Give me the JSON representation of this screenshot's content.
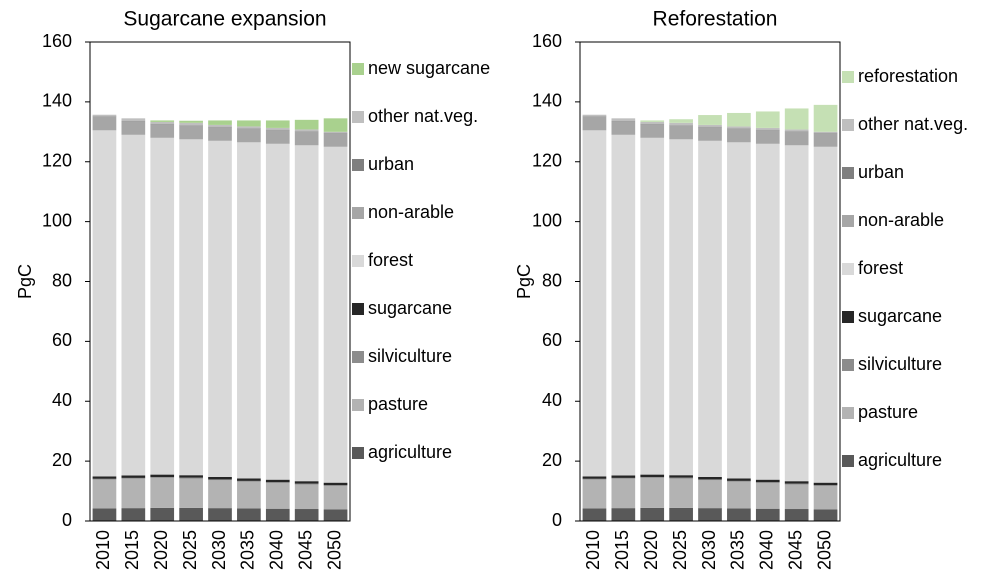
{
  "chart_data": [
    {
      "type": "stacked_bar",
      "title": "Sugarcane expansion",
      "y_label": "PgC",
      "categories": [
        "2010",
        "2015",
        "2020",
        "2025",
        "2030",
        "2035",
        "2040",
        "2045",
        "2050"
      ],
      "ylim": [
        0,
        160
      ],
      "yticks": [
        0,
        20,
        40,
        60,
        80,
        100,
        120,
        140,
        160
      ],
      "series": [
        {
          "name": "agriculture",
          "color": "#595959",
          "values": [
            4.2,
            4.3,
            4.4,
            4.4,
            4.3,
            4.2,
            4.1,
            4.0,
            3.9
          ]
        },
        {
          "name": "pasture",
          "color": "#b3b3b3",
          "values": [
            9.6,
            9.8,
            10.0,
            9.8,
            9.3,
            8.9,
            8.6,
            8.2,
            7.8
          ]
        },
        {
          "name": "silviculture",
          "color": "#8c8c8c",
          "values": [
            0.3,
            0.3,
            0.3,
            0.3,
            0.3,
            0.3,
            0.3,
            0.3,
            0.3
          ]
        },
        {
          "name": "sugarcane",
          "color": "#262626",
          "values": [
            0.8,
            0.8,
            0.8,
            0.8,
            0.8,
            0.8,
            0.8,
            0.8,
            0.8
          ]
        },
        {
          "name": "forest",
          "color": "#d9d9d9",
          "values": [
            115.6,
            113.8,
            112.5,
            112.2,
            112.3,
            112.3,
            112.2,
            112.2,
            112.2
          ]
        },
        {
          "name": "non-arable",
          "color": "#a6a6a6",
          "values": [
            4.5,
            4.5,
            4.5,
            4.5,
            4.5,
            4.5,
            4.5,
            4.5,
            4.5
          ]
        },
        {
          "name": "urban",
          "color": "#7f7f7f",
          "values": [
            0.2,
            0.2,
            0.2,
            0.2,
            0.2,
            0.2,
            0.2,
            0.2,
            0.2
          ]
        },
        {
          "name": "other nat.veg.",
          "color": "#bfbfbf",
          "values": [
            0.5,
            0.8,
            0.6,
            0.8,
            0.6,
            0.6,
            0.6,
            0.6,
            0.3
          ]
        },
        {
          "name": "new sugarcane",
          "color": "#a9d18e",
          "values": [
            0,
            0,
            0.5,
            0.7,
            1.5,
            2.0,
            2.5,
            3.2,
            4.5
          ]
        }
      ]
    },
    {
      "type": "stacked_bar",
      "title": "Reforestation",
      "y_label": "PgC",
      "categories": [
        "2010",
        "2015",
        "2020",
        "2025",
        "2030",
        "2035",
        "2040",
        "2045",
        "2050"
      ],
      "ylim": [
        0,
        160
      ],
      "yticks": [
        0,
        20,
        40,
        60,
        80,
        100,
        120,
        140,
        160
      ],
      "series": [
        {
          "name": "agriculture",
          "color": "#595959",
          "values": [
            4.2,
            4.3,
            4.4,
            4.4,
            4.3,
            4.2,
            4.1,
            4.0,
            3.9
          ]
        },
        {
          "name": "pasture",
          "color": "#b3b3b3",
          "values": [
            9.6,
            9.8,
            10.0,
            9.8,
            9.3,
            8.9,
            8.6,
            8.2,
            7.8
          ]
        },
        {
          "name": "silviculture",
          "color": "#8c8c8c",
          "values": [
            0.3,
            0.3,
            0.3,
            0.3,
            0.3,
            0.3,
            0.3,
            0.3,
            0.3
          ]
        },
        {
          "name": "sugarcane",
          "color": "#262626",
          "values": [
            0.8,
            0.8,
            0.8,
            0.8,
            0.8,
            0.8,
            0.8,
            0.8,
            0.8
          ]
        },
        {
          "name": "forest",
          "color": "#d9d9d9",
          "values": [
            115.6,
            113.8,
            112.5,
            112.2,
            112.3,
            112.3,
            112.2,
            112.2,
            112.2
          ]
        },
        {
          "name": "non-arable",
          "color": "#a6a6a6",
          "values": [
            4.5,
            4.5,
            4.5,
            4.5,
            4.5,
            4.5,
            4.5,
            4.5,
            4.5
          ]
        },
        {
          "name": "urban",
          "color": "#7f7f7f",
          "values": [
            0.2,
            0.2,
            0.2,
            0.2,
            0.2,
            0.2,
            0.2,
            0.2,
            0.2
          ]
        },
        {
          "name": "other nat.veg.",
          "color": "#bfbfbf",
          "values": [
            0.5,
            0.8,
            0.6,
            0.8,
            0.6,
            0.6,
            0.6,
            0.6,
            0.3
          ]
        },
        {
          "name": "reforestation",
          "color": "#c5e0b4",
          "values": [
            0,
            0,
            0.5,
            1.2,
            3.3,
            4.5,
            5.5,
            7.0,
            9.0
          ]
        }
      ]
    }
  ]
}
